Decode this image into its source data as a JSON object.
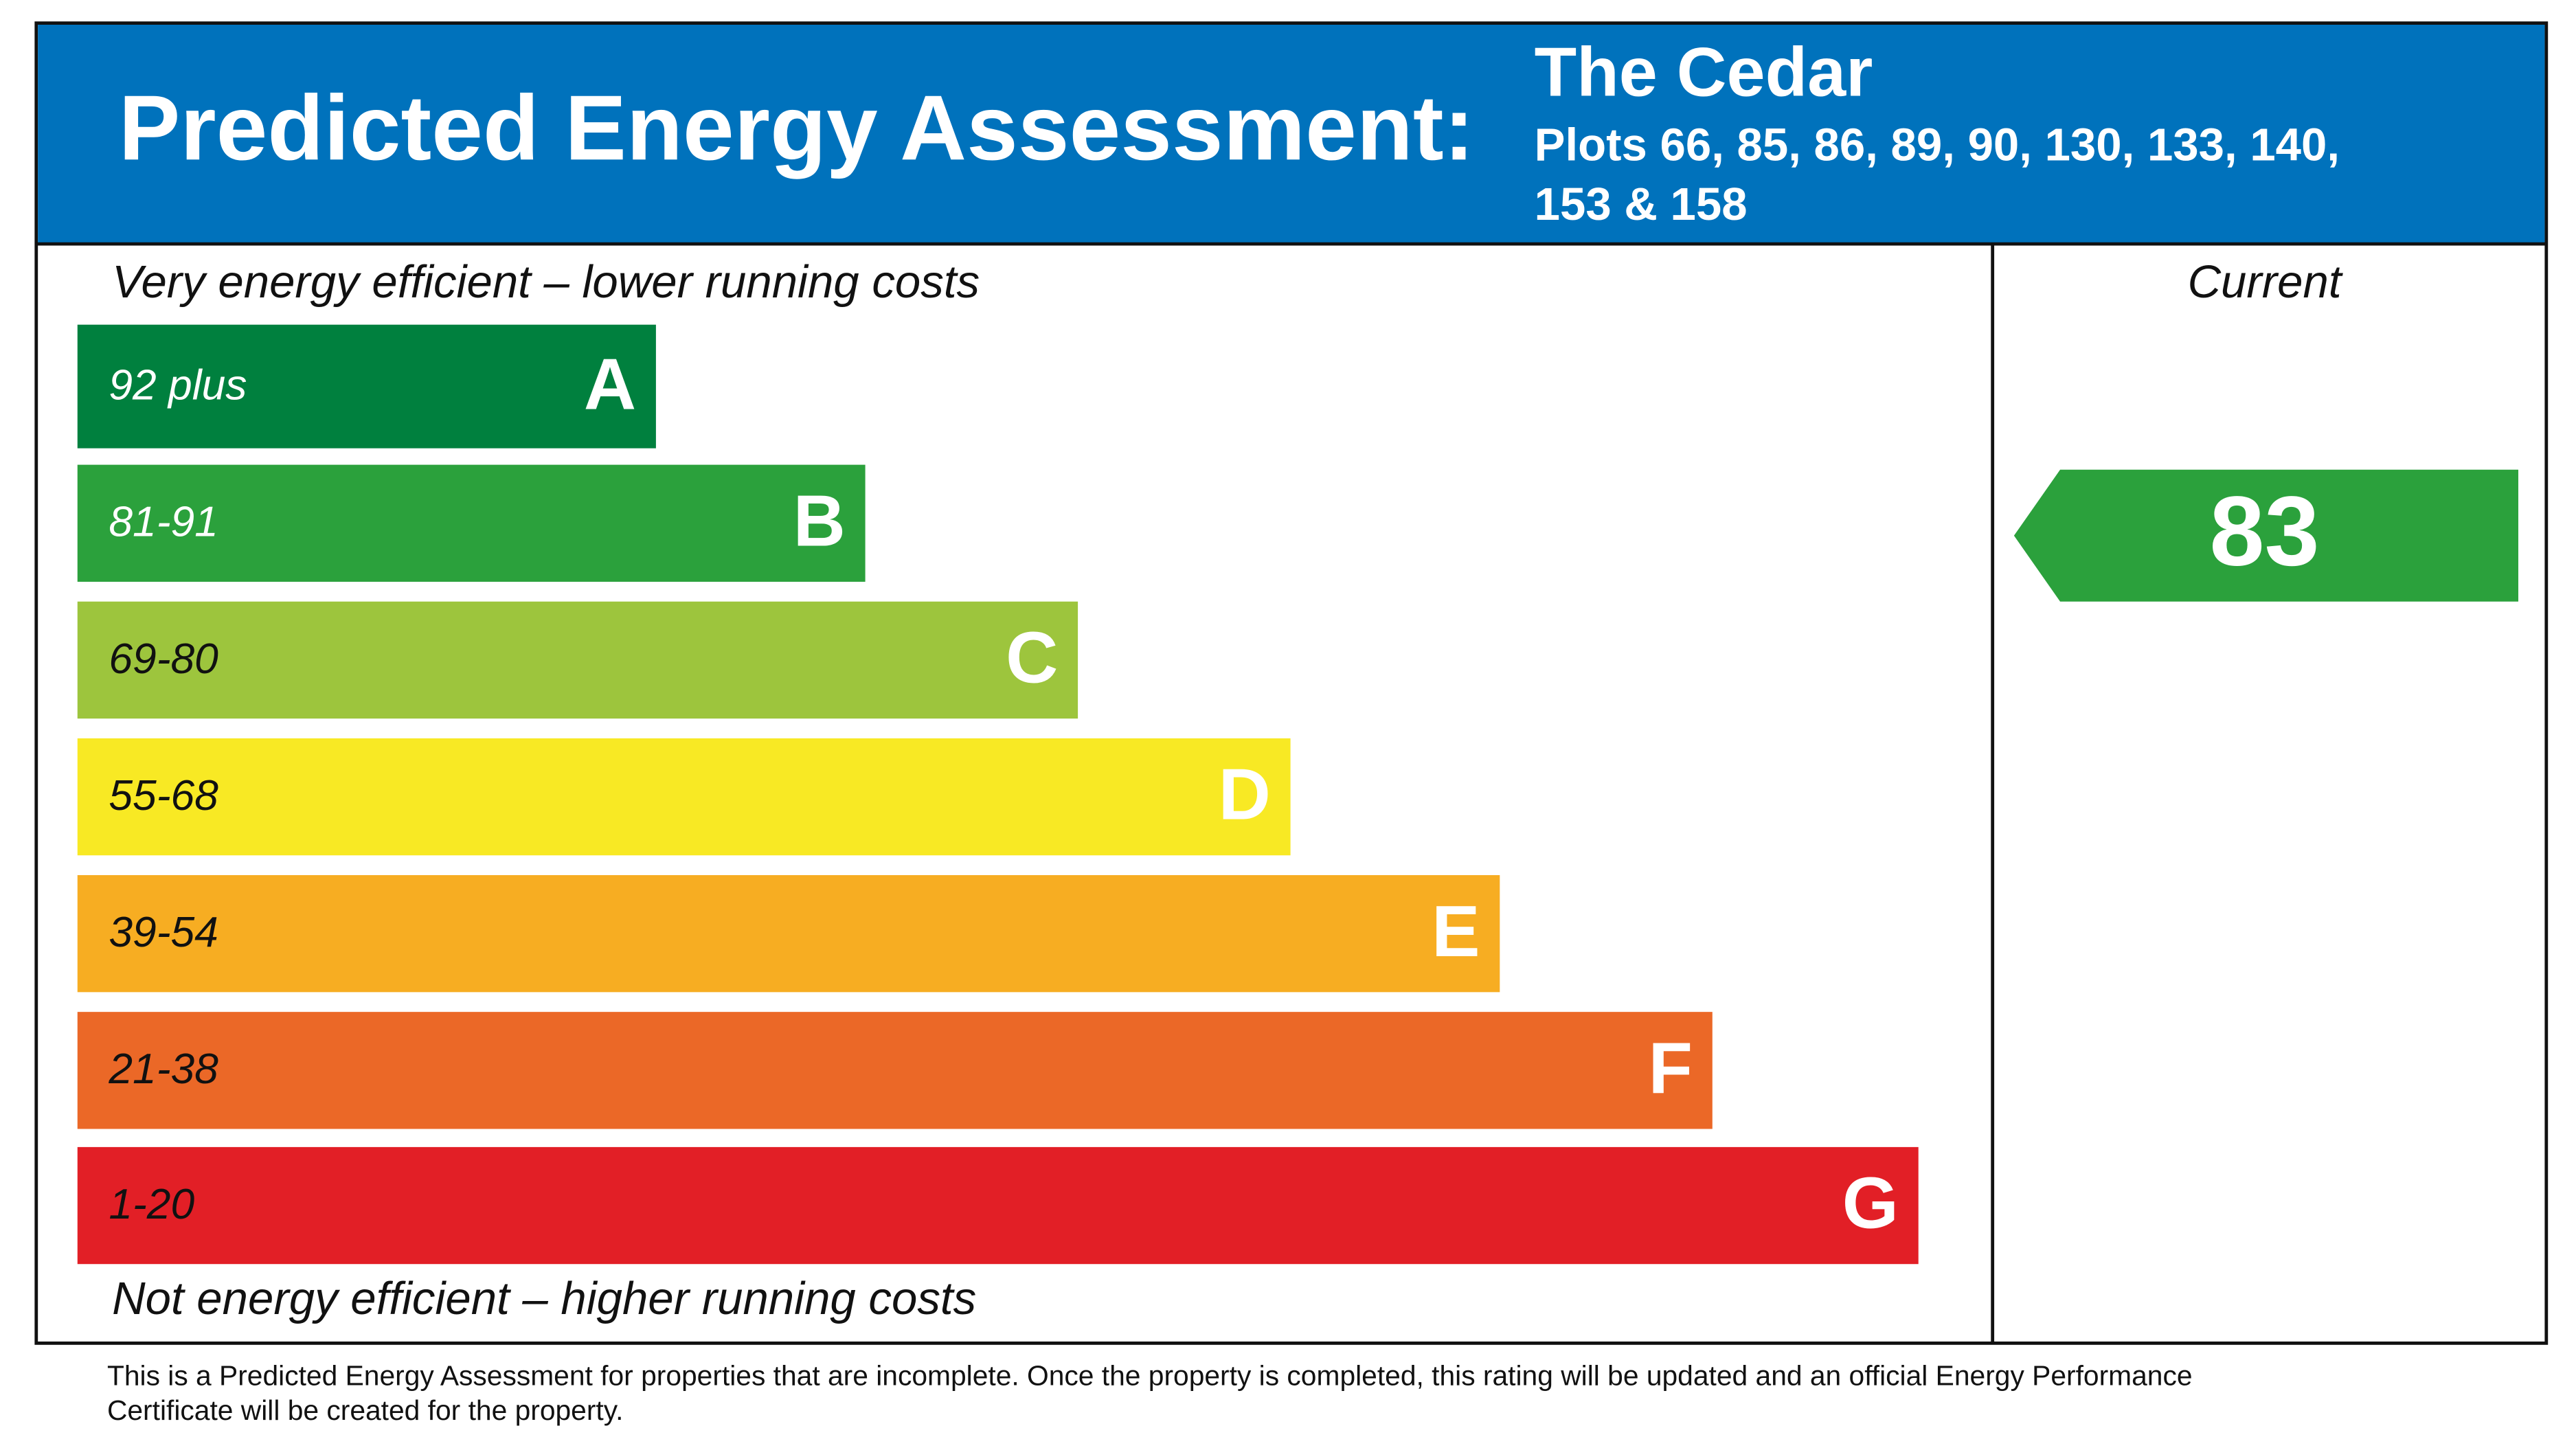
{
  "header": {
    "title": "Predicted Energy Assessment:",
    "property": "The Cedar",
    "plots": [
      "Plots 66, 85, 86, 89, 90, 130, 133, 140,",
      "153 & 158"
    ]
  },
  "top_caption": "Very energy efficient – lower running costs",
  "bottom_caption": "Not energy efficient – higher running costs",
  "bands": [
    {
      "range": "92 plus",
      "letter": "A",
      "color": "#00803e"
    },
    {
      "range": "81-91",
      "letter": "B",
      "color": "#2ba13c"
    },
    {
      "range": "69-80",
      "letter": "C",
      "color": "#9dc53d"
    },
    {
      "range": "55-68",
      "letter": "D",
      "color": "#f8e924"
    },
    {
      "range": "39-54",
      "letter": "E",
      "color": "#f7ad22"
    },
    {
      "range": "21-38",
      "letter": "F",
      "color": "#eb6827"
    },
    {
      "range": "1-20",
      "letter": "G",
      "color": "#e21f26"
    }
  ],
  "current": {
    "label": "Current",
    "value": 83,
    "color": "#2ba13c"
  },
  "footnote": [
    "This is a Predicted Energy Assessment for properties that are incomplete. Once the property is completed, this rating will be updated and an official Energy Performance",
    "Certificate will be created for the property."
  ]
}
